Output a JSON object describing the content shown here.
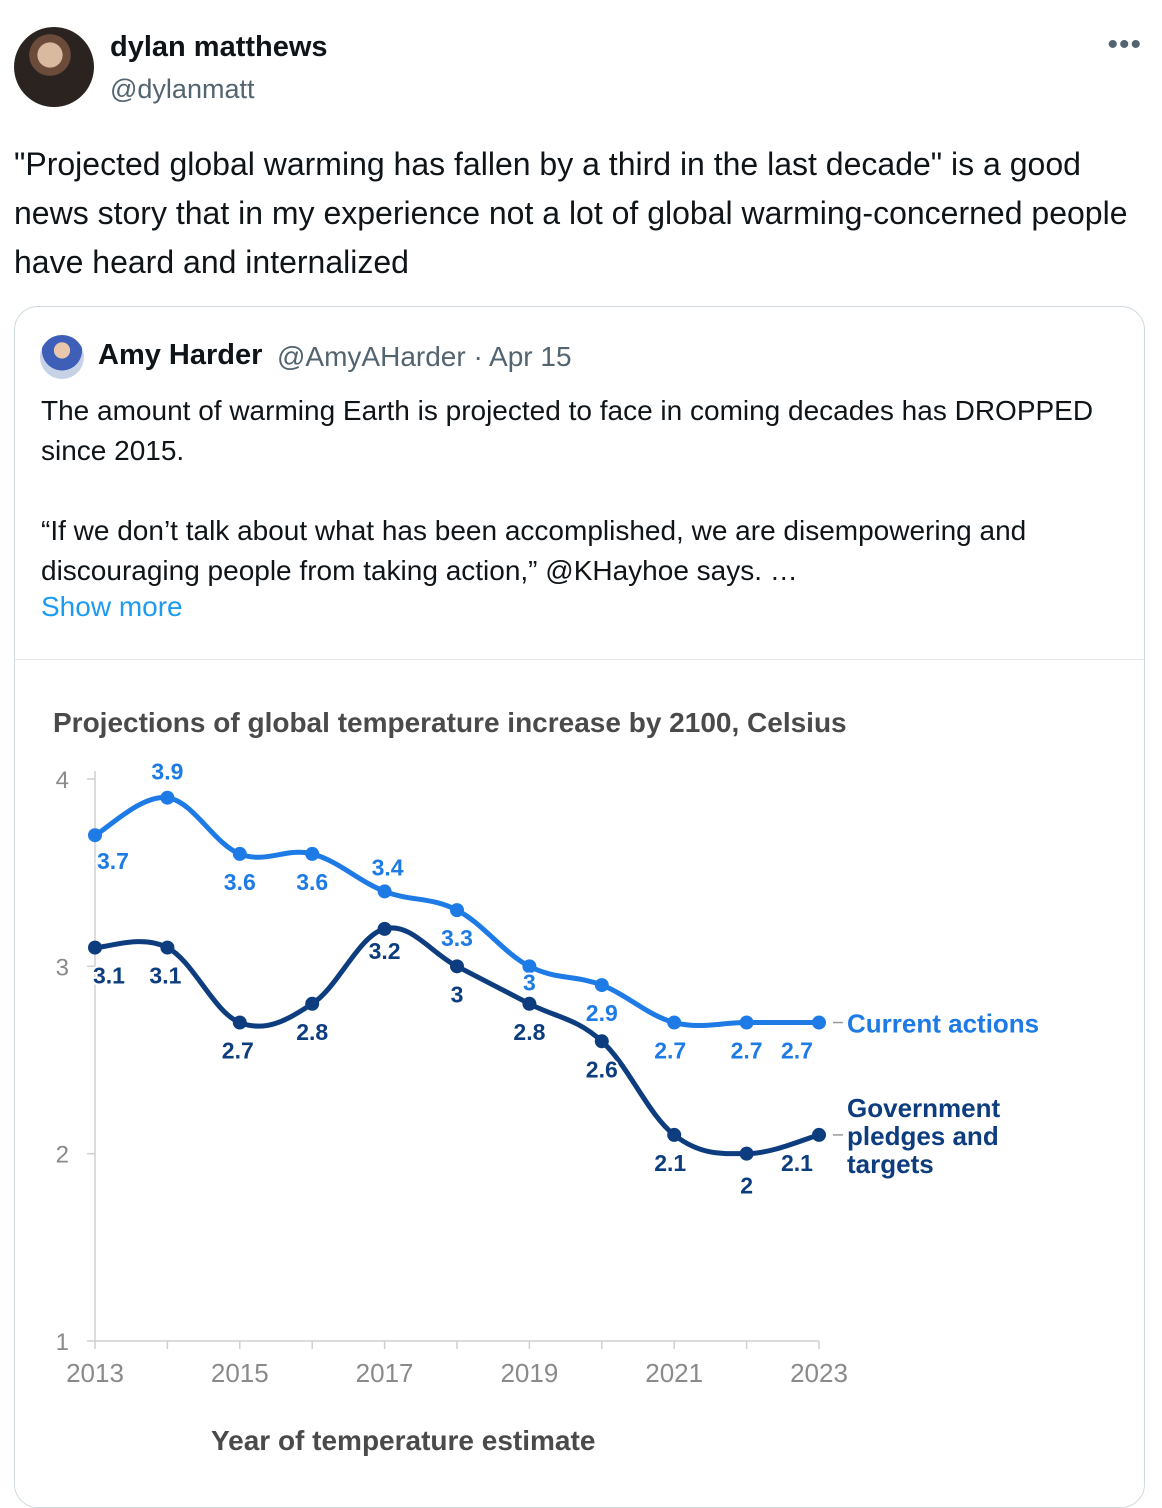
{
  "tweet": {
    "author_name": "dylan matthews",
    "author_handle": "@dylanmatt",
    "more_icon": "more-horizontal-icon",
    "text": "\"Projected global warming has fallen by a third in the last decade\" is a good news story that in my experience not a lot of global warming-concerned people have heard and internalized"
  },
  "quote": {
    "author_name": "Amy Harder",
    "author_handle": "@AmyAHarder",
    "date": "Apr 15",
    "separator": "·",
    "text": "The amount of warming Earth is projected to face in coming decades has DROPPED since 2015.\n\n“If we don’t talk about what has been accomplished, we are disempowering and discouraging people from taking action,” @KHayhoe says. …",
    "show_more": "Show more"
  },
  "colors": {
    "current": "#1e7be6",
    "pledges": "#0d3d7e",
    "link": "#1d9bf0"
  },
  "chart_data": {
    "type": "line",
    "title": "Projections of global temperature increase by 2100, Celsius",
    "xlabel": "Year of temperature estimate",
    "ylabel": "",
    "x": [
      2013,
      2014,
      2015,
      2016,
      2017,
      2018,
      2019,
      2020,
      2021,
      2022,
      2023
    ],
    "xticks": [
      "2013",
      "2015",
      "2017",
      "2019",
      "2021",
      "2023"
    ],
    "yticks": [
      "1",
      "2",
      "3",
      "4"
    ],
    "ylim": [
      1,
      4
    ],
    "series": [
      {
        "name": "Current actions",
        "values": [
          3.7,
          3.9,
          3.6,
          3.6,
          3.4,
          3.3,
          3,
          2.9,
          2.7,
          2.7,
          2.7
        ],
        "labels": [
          "3.7",
          "3.9",
          "3.6",
          "3.6",
          "3.4",
          "3.3",
          "3",
          "2.9",
          "2.7",
          "2.7",
          "2.7"
        ]
      },
      {
        "name": "Government pledges and targets",
        "values": [
          3.1,
          3.1,
          2.7,
          2.8,
          3.2,
          3,
          2.8,
          2.6,
          2.1,
          2,
          2.1
        ],
        "labels": [
          "3.1",
          "3.1",
          "2.7",
          "2.8",
          "3.2",
          "3",
          "2.8",
          "2.6",
          "2.1",
          "2",
          "2.1"
        ],
        "legend_lines": [
          "Government",
          "pledges and",
          "targets"
        ]
      }
    ]
  }
}
